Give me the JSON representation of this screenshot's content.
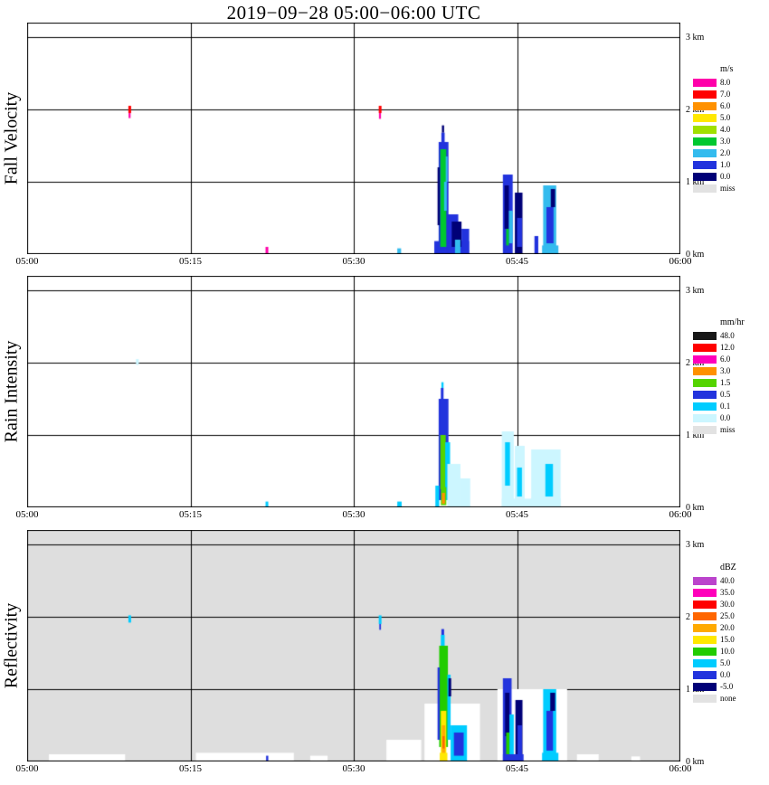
{
  "page": {
    "title": "2019−09−28  05:00−06:00 UTC"
  },
  "chart_data": {
    "type": "heatmap",
    "title": "2019−09−28  05:00−06:00 UTC",
    "description": "Time-height precipitation profiler quicklook with three stacked panels",
    "x_axis": {
      "min": 0,
      "max": 60,
      "ticks": [
        {
          "min": 0,
          "label": "05:00"
        },
        {
          "min": 15,
          "label": "05:15"
        },
        {
          "min": 30,
          "label": "05:30"
        },
        {
          "min": 45,
          "label": "05:45"
        },
        {
          "min": 60,
          "label": "06:00"
        }
      ],
      "gridlines": [
        15,
        30,
        45
      ]
    },
    "y_axis": {
      "min": 0,
      "max": 3.2,
      "ticks": [
        {
          "km": 3,
          "label": "3 km"
        },
        {
          "km": 2,
          "label": "2 km"
        },
        {
          "km": 1,
          "label": "1 km"
        },
        {
          "km": 0,
          "label": "0 km"
        }
      ],
      "gridlines": [
        1,
        2,
        3
      ]
    },
    "panels": [
      {
        "name": "Fall Velocity",
        "units": "m/s",
        "background": "#ffffff",
        "legend": [
          {
            "label": "8.0",
            "color": "#ff00aa"
          },
          {
            "label": "7.0",
            "color": "#ff0000"
          },
          {
            "label": "6.0",
            "color": "#ff9100"
          },
          {
            "label": "5.0",
            "color": "#ffe800"
          },
          {
            "label": "4.0",
            "color": "#a0e000"
          },
          {
            "label": "3.0",
            "color": "#00c830"
          },
          {
            "label": "2.0",
            "color": "#33bbee"
          },
          {
            "label": "1.0",
            "color": "#2233dd"
          },
          {
            "label": "0.0",
            "color": "#000077"
          },
          {
            "label": "miss",
            "color": "#e2e2e2"
          }
        ],
        "cells": [
          [
            9.3,
            9.55,
            1.95,
            2.05,
            "7.0"
          ],
          [
            9.32,
            9.5,
            1.88,
            1.95,
            "8.0"
          ],
          [
            32.3,
            32.55,
            1.95,
            2.05,
            "7.0"
          ],
          [
            32.32,
            32.5,
            1.87,
            1.95,
            "8.0"
          ],
          [
            21.9,
            22.15,
            0.0,
            0.1,
            "8.0"
          ],
          [
            34.0,
            34.35,
            0.0,
            0.08,
            "2.0"
          ],
          [
            37.4,
            40.6,
            0.0,
            0.18,
            "1.0"
          ],
          [
            37.8,
            38.7,
            0.15,
            1.55,
            "1.0"
          ],
          [
            37.95,
            38.5,
            0.1,
            1.45,
            "3.0"
          ],
          [
            38.05,
            38.35,
            1.45,
            1.68,
            "1.0"
          ],
          [
            38.1,
            38.3,
            1.68,
            1.78,
            "0.0"
          ],
          [
            37.7,
            37.9,
            0.4,
            1.2,
            "0.0"
          ],
          [
            38.3,
            38.55,
            0.6,
            1.0,
            "2.0"
          ],
          [
            38.6,
            39.6,
            0.0,
            0.55,
            "1.0"
          ],
          [
            39.0,
            39.9,
            0.1,
            0.45,
            "0.0"
          ],
          [
            39.3,
            39.8,
            0.0,
            0.2,
            "2.0"
          ],
          [
            39.9,
            40.6,
            0.0,
            0.35,
            "1.0"
          ],
          [
            38.45,
            38.62,
            1.0,
            1.35,
            "2.0"
          ],
          [
            43.7,
            44.6,
            0.0,
            1.1,
            "1.0"
          ],
          [
            43.85,
            44.25,
            0.35,
            0.95,
            "0.0"
          ],
          [
            44.25,
            44.6,
            0.15,
            0.6,
            "2.0"
          ],
          [
            44.0,
            44.25,
            0.12,
            0.35,
            "3.0"
          ],
          [
            44.8,
            45.5,
            0.0,
            0.85,
            "0.0"
          ],
          [
            45.0,
            45.45,
            0.1,
            0.5,
            "1.0"
          ],
          [
            46.6,
            46.95,
            0.0,
            0.25,
            "1.0"
          ],
          [
            47.4,
            48.6,
            0.1,
            0.95,
            "2.0"
          ],
          [
            47.7,
            48.35,
            0.15,
            0.65,
            "1.0"
          ],
          [
            48.1,
            48.5,
            0.65,
            0.9,
            "0.0"
          ],
          [
            47.3,
            48.8,
            0.0,
            0.12,
            "2.0"
          ]
        ]
      },
      {
        "name": "Rain Intensity",
        "units": "mm/hr",
        "background": "#ffffff",
        "legend": [
          {
            "label": "48.0",
            "color": "#181818"
          },
          {
            "label": "12.0",
            "color": "#ff0000"
          },
          {
            "label": "6.0",
            "color": "#ff00bb"
          },
          {
            "label": "3.0",
            "color": "#ff9100"
          },
          {
            "label": "1.5",
            "color": "#55d400"
          },
          {
            "label": "0.5",
            "color": "#2233dd"
          },
          {
            "label": "0.1",
            "color": "#00ccff"
          },
          {
            "label": "0.0",
            "color": "#ccf6ff"
          },
          {
            "label": "miss",
            "color": "#e2e2e2"
          }
        ],
        "cells": [
          [
            10.0,
            10.25,
            1.97,
            2.05,
            "0.0"
          ],
          [
            21.9,
            22.15,
            0.0,
            0.08,
            "0.1"
          ],
          [
            34.0,
            34.4,
            0.0,
            0.08,
            "0.1"
          ],
          [
            37.8,
            38.7,
            0.1,
            1.5,
            "0.5"
          ],
          [
            38.0,
            38.25,
            1.5,
            1.65,
            "0.5"
          ],
          [
            38.05,
            38.25,
            1.65,
            1.73,
            "0.1"
          ],
          [
            37.95,
            38.45,
            0.25,
            1.0,
            "1.5"
          ],
          [
            38.4,
            38.85,
            0.1,
            0.9,
            "0.1"
          ],
          [
            38.6,
            39.8,
            0.0,
            0.6,
            "0.0"
          ],
          [
            39.8,
            40.7,
            0.0,
            0.4,
            "0.0"
          ],
          [
            38.0,
            38.5,
            0.03,
            0.28,
            "1.5"
          ],
          [
            38.1,
            38.38,
            0.05,
            0.2,
            "3.0"
          ],
          [
            37.5,
            37.85,
            0.0,
            0.3,
            "0.1"
          ],
          [
            43.6,
            44.7,
            0.0,
            1.05,
            "0.0"
          ],
          [
            43.9,
            44.35,
            0.3,
            0.9,
            "0.1"
          ],
          [
            44.8,
            45.7,
            0.0,
            0.85,
            "0.0"
          ],
          [
            45.0,
            45.45,
            0.15,
            0.55,
            "0.1"
          ],
          [
            46.3,
            49.0,
            0.0,
            0.8,
            "0.0"
          ],
          [
            47.6,
            48.3,
            0.15,
            0.6,
            "0.1"
          ],
          [
            43.6,
            49.0,
            0.0,
            0.12,
            "0.0"
          ]
        ]
      },
      {
        "name": "Reflectivity",
        "units": "dBZ",
        "background": "#dedede",
        "extra_colors": {
          "clear": "#ffffff"
        },
        "legend": [
          {
            "label": "40.0",
            "color": "#bb44cc"
          },
          {
            "label": "35.0",
            "color": "#ff00bb"
          },
          {
            "label": "30.0",
            "color": "#ff0000"
          },
          {
            "label": "25.0",
            "color": "#ff6600"
          },
          {
            "label": "20.0",
            "color": "#ffaa00"
          },
          {
            "label": "15.0",
            "color": "#ffe800"
          },
          {
            "label": "10.0",
            "color": "#22cc00"
          },
          {
            "label": "5.0",
            "color": "#00ccff"
          },
          {
            "label": "0.0",
            "color": "#2233dd"
          },
          {
            "label": "-5.0",
            "color": "#000077"
          },
          {
            "label": "none",
            "color": "#e2e2e2"
          }
        ],
        "cells": [
          [
            2.0,
            9.0,
            0.0,
            0.1,
            "clear"
          ],
          [
            15.5,
            24.5,
            0.0,
            0.12,
            "clear"
          ],
          [
            26.0,
            27.6,
            0.0,
            0.08,
            "clear"
          ],
          [
            33.0,
            36.2,
            0.0,
            0.3,
            "clear"
          ],
          [
            36.5,
            41.6,
            0.0,
            0.8,
            "clear"
          ],
          [
            43.2,
            49.6,
            0.0,
            1.0,
            "clear"
          ],
          [
            50.5,
            52.5,
            0.0,
            0.1,
            "clear"
          ],
          [
            55.5,
            56.3,
            0.0,
            0.07,
            "clear"
          ],
          [
            9.3,
            9.55,
            1.92,
            2.02,
            "5.0"
          ],
          [
            32.3,
            32.55,
            1.9,
            2.02,
            "5.0"
          ],
          [
            32.35,
            32.5,
            1.82,
            1.9,
            "0.0"
          ],
          [
            21.95,
            22.15,
            0.0,
            0.08,
            "0.0"
          ],
          [
            37.85,
            38.65,
            0.2,
            1.6,
            "10.0"
          ],
          [
            38.0,
            38.35,
            1.6,
            1.75,
            "5.0"
          ],
          [
            38.05,
            38.3,
            1.75,
            1.83,
            "0.0"
          ],
          [
            37.9,
            38.6,
            0.0,
            0.12,
            "15.0"
          ],
          [
            38.0,
            38.5,
            0.1,
            0.7,
            "15.0"
          ],
          [
            38.1,
            38.4,
            0.12,
            0.5,
            "20.0"
          ],
          [
            38.15,
            38.35,
            0.18,
            0.35,
            "25.0"
          ],
          [
            37.7,
            37.9,
            0.3,
            1.3,
            "0.0"
          ],
          [
            38.6,
            38.9,
            0.3,
            1.2,
            "5.0"
          ],
          [
            38.7,
            38.95,
            0.9,
            1.15,
            "-5.0"
          ],
          [
            38.9,
            40.4,
            0.0,
            0.5,
            "5.0"
          ],
          [
            39.2,
            40.1,
            0.08,
            0.4,
            "0.0"
          ],
          [
            43.7,
            44.5,
            0.0,
            1.15,
            "0.0"
          ],
          [
            43.9,
            44.3,
            0.35,
            0.95,
            "-5.0"
          ],
          [
            44.3,
            44.7,
            0.1,
            0.65,
            "5.0"
          ],
          [
            44.0,
            44.3,
            0.1,
            0.4,
            "10.0"
          ],
          [
            44.85,
            45.5,
            0.0,
            0.85,
            "-5.0"
          ],
          [
            45.05,
            45.45,
            0.1,
            0.5,
            "0.0"
          ],
          [
            47.4,
            48.6,
            0.1,
            1.0,
            "5.0"
          ],
          [
            47.7,
            48.3,
            0.15,
            0.7,
            "0.0"
          ],
          [
            48.05,
            48.5,
            0.7,
            0.95,
            "-5.0"
          ],
          [
            43.7,
            45.6,
            0.0,
            0.1,
            "0.0"
          ],
          [
            47.3,
            48.8,
            0.0,
            0.12,
            "5.0"
          ]
        ]
      }
    ]
  }
}
